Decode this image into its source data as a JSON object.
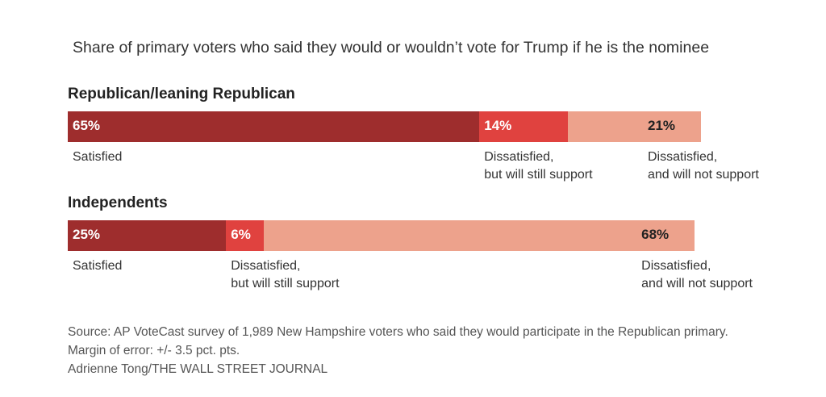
{
  "chart_data": {
    "type": "bar",
    "orientation": "horizontal-stacked",
    "title": "Share of primary voters who said they would or wouldn’t vote for Trump if he is the nominee",
    "unit": "%",
    "categories": [
      "Republican/leaning Republican",
      "Independents"
    ],
    "series": [
      {
        "name": "Satisfied",
        "values": [
          65,
          25
        ],
        "color": "#9e2d2d"
      },
      {
        "name": "Dissatisfied, but will still support",
        "values": [
          14,
          6
        ],
        "color": "#e0423f"
      },
      {
        "name": "Dissatisfied, and will not support",
        "values": [
          21,
          68
        ],
        "color": "#eda28c"
      }
    ],
    "value_labels": [
      [
        "65%",
        "14%",
        "21%"
      ],
      [
        "25%",
        "6%",
        "68%"
      ]
    ],
    "segment_labels": [
      [
        [
          "Satisfied"
        ],
        [
          "Dissatisfied,",
          "but will still support"
        ],
        [
          "Dissatisfied,",
          "and will not support"
        ]
      ],
      [
        [
          "Satisfied"
        ],
        [
          "Dissatisfied,",
          "but will still support"
        ],
        [
          "Dissatisfied,",
          "and will not support"
        ]
      ]
    ],
    "xlim": [
      0,
      100
    ],
    "grid": false,
    "legend": "none"
  },
  "footer": {
    "source": "Source: AP VoteCast survey of 1,989 New Hampshire voters who said they would participate in the Republican primary.",
    "margin": "Margin of error: +/- 3.5 pct. pts.",
    "credit": "Adrienne Tong/THE WALL STREET JOURNAL"
  }
}
